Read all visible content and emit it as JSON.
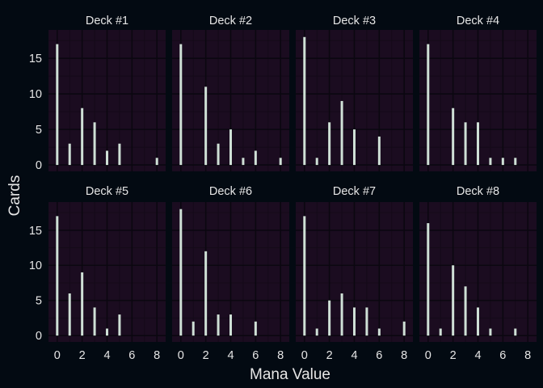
{
  "chart_data": {
    "type": "bar",
    "xlabel": "Mana Value",
    "ylabel": "Cards",
    "x_ticks": [
      0,
      2,
      4,
      6,
      8
    ],
    "y_ticks": [
      0,
      5,
      10,
      15
    ],
    "xlim": [
      -0.7,
      8.7
    ],
    "ylim": [
      -0.9,
      19
    ],
    "colors": {
      "background": "#030a12",
      "panel": "#1b0c20",
      "grid_major": "#0b0710",
      "grid_minor": "#140a18",
      "bar": "#cfe0d6",
      "text": "#e6e6e6"
    },
    "facets": [
      {
        "title": "Deck #1",
        "x": [
          0,
          1,
          2,
          3,
          4,
          5,
          8
        ],
        "values": [
          17,
          3,
          8,
          6,
          2,
          3,
          1
        ]
      },
      {
        "title": "Deck #2",
        "x": [
          0,
          2,
          3,
          4,
          5,
          6,
          8
        ],
        "values": [
          17,
          11,
          3,
          5,
          1,
          2,
          1
        ]
      },
      {
        "title": "Deck #3",
        "x": [
          0,
          1,
          2,
          3,
          4,
          6
        ],
        "values": [
          18,
          1,
          6,
          9,
          5,
          4
        ]
      },
      {
        "title": "Deck #4",
        "x": [
          0,
          2,
          3,
          4,
          5,
          6,
          7
        ],
        "values": [
          17,
          8,
          6,
          6,
          1,
          1,
          1
        ]
      },
      {
        "title": "Deck #5",
        "x": [
          0,
          1,
          2,
          3,
          4,
          5
        ],
        "values": [
          17,
          6,
          9,
          4,
          1,
          3
        ]
      },
      {
        "title": "Deck #6",
        "x": [
          0,
          1,
          2,
          3,
          4,
          6
        ],
        "values": [
          18,
          2,
          12,
          3,
          3,
          2
        ]
      },
      {
        "title": "Deck #7",
        "x": [
          0,
          1,
          2,
          3,
          4,
          5,
          6,
          8
        ],
        "values": [
          17,
          1,
          5,
          6,
          4,
          4,
          1,
          2
        ]
      },
      {
        "title": "Deck #8",
        "x": [
          0,
          1,
          2,
          3,
          4,
          5,
          7
        ],
        "values": [
          16,
          1,
          10,
          7,
          4,
          1,
          1
        ]
      }
    ]
  }
}
